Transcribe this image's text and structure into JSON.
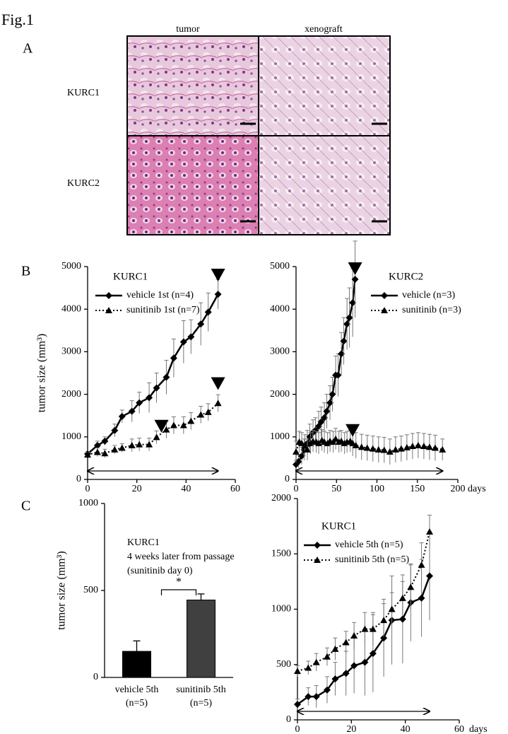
{
  "figure_label": "Fig.1",
  "panel_labels": [
    "A",
    "B",
    "C"
  ],
  "histology": {
    "columns": [
      "tumor",
      "xenograft"
    ],
    "rows": [
      "KURC1",
      "KURC2"
    ]
  },
  "chart_data": [
    {
      "type": "line",
      "label": "KURC1",
      "ylabel": "tumor size (mm³)",
      "xlim": [
        0,
        60
      ],
      "xticks": [
        0,
        20,
        40,
        60
      ],
      "ylim": [
        0,
        5000
      ],
      "yticks": [
        0,
        1000,
        2000,
        3000,
        4000,
        5000
      ],
      "legend": "upper left",
      "series": [
        {
          "name": "vehicle 1st (n=4)",
          "color": "#000000",
          "marker": "diamond",
          "dash": "solid",
          "x": [
            0,
            4,
            7,
            11,
            14,
            18,
            21,
            25,
            28,
            32,
            35,
            39,
            42,
            46,
            49,
            53
          ],
          "values": [
            600,
            800,
            900,
            1150,
            1480,
            1600,
            1800,
            1920,
            2150,
            2400,
            2850,
            3230,
            3350,
            3650,
            3930,
            4350
          ],
          "errors": [
            50,
            100,
            100,
            150,
            150,
            250,
            250,
            350,
            350,
            400,
            450,
            500,
            400,
            500,
            450,
            350
          ]
        },
        {
          "name": "sunitinib 1st (n=7)",
          "color": "#000000",
          "marker": "triangle",
          "dash": "dotted",
          "x": [
            0,
            4,
            7,
            11,
            14,
            18,
            21,
            25,
            28,
            32,
            35,
            39,
            42,
            46,
            49,
            53
          ],
          "values": [
            580,
            640,
            610,
            700,
            740,
            800,
            820,
            820,
            990,
            1170,
            1270,
            1270,
            1370,
            1520,
            1580,
            1790
          ],
          "errors": [
            50,
            100,
            100,
            100,
            100,
            150,
            150,
            150,
            150,
            200,
            200,
            200,
            200,
            200,
            200,
            200
          ]
        }
      ],
      "arrow_markers": [
        {
          "x": 53,
          "y": 4800
        },
        {
          "x": 30,
          "y": 1250
        },
        {
          "x": 53,
          "y": 2250
        }
      ],
      "treatment_span": [
        0,
        53
      ]
    },
    {
      "type": "line",
      "label": "KURC2",
      "xlabel": "days",
      "xlim": [
        0,
        200
      ],
      "xticks": [
        0,
        50,
        100,
        150,
        200
      ],
      "ylim": [
        0,
        5000
      ],
      "yticks": [
        0,
        1000,
        2000,
        3000,
        4000,
        5000
      ],
      "legend": "upper right",
      "series": [
        {
          "name": "vehicle (n=3)",
          "color": "#000000",
          "marker": "diamond",
          "dash": "solid",
          "x": [
            0,
            3,
            7,
            10,
            14,
            17,
            21,
            24,
            28,
            31,
            35,
            38,
            42,
            45,
            49,
            52,
            56,
            59,
            63,
            66,
            70,
            73
          ],
          "values": [
            350,
            420,
            550,
            700,
            850,
            1000,
            1100,
            1150,
            1250,
            1350,
            1450,
            1600,
            1800,
            2000,
            2450,
            2450,
            2950,
            3250,
            3650,
            3800,
            4150,
            4700
          ],
          "errors": [
            100,
            150,
            200,
            250,
            300,
            300,
            300,
            300,
            350,
            350,
            350,
            400,
            400,
            400,
            450,
            500,
            500,
            550,
            600,
            700,
            800,
            900
          ]
        },
        {
          "name": "sunitinib (n=3)",
          "color": "#000000",
          "marker": "triangle",
          "dash": "dotted",
          "x": [
            0,
            4,
            7,
            11,
            14,
            18,
            21,
            25,
            28,
            32,
            35,
            39,
            42,
            46,
            49,
            53,
            56,
            60,
            63,
            67,
            70,
            74,
            81,
            88,
            95,
            102,
            109,
            116,
            123,
            130,
            137,
            144,
            151,
            158,
            165,
            172,
            181
          ],
          "values": [
            650,
            880,
            850,
            800,
            700,
            850,
            900,
            880,
            850,
            920,
            880,
            850,
            900,
            880,
            950,
            880,
            900,
            850,
            880,
            900,
            850,
            800,
            760,
            740,
            720,
            700,
            690,
            650,
            700,
            720,
            750,
            780,
            800,
            780,
            760,
            740,
            700
          ],
          "errors": [
            250,
            250,
            250,
            250,
            250,
            250,
            250,
            250,
            250,
            250,
            250,
            250,
            250,
            250,
            250,
            250,
            250,
            250,
            250,
            250,
            300,
            300,
            300,
            300,
            300,
            300,
            300,
            300,
            300,
            300,
            300,
            300,
            300,
            300,
            300,
            300,
            250
          ]
        }
      ],
      "arrow_markers": [
        {
          "x": 73,
          "y": 4950
        },
        {
          "x": 70,
          "y": 1150
        }
      ],
      "treatment_span": [
        0,
        181
      ]
    },
    {
      "type": "bar",
      "ylabel": "tumor size (mm³)",
      "annotations": [
        "KURC1",
        "4 weeks later from passage",
        "(sunitinib day 0)"
      ],
      "categories": [
        "vehicle 5th",
        "sunitinib 5th"
      ],
      "category_notes": [
        "(n=5)",
        "(n=5)"
      ],
      "values": [
        150,
        445
      ],
      "errors": [
        60,
        35
      ],
      "colors": [
        "#000000",
        "#404040"
      ],
      "ylim": [
        0,
        1000
      ],
      "yticks": [
        0,
        500,
        1000
      ],
      "significance": "*"
    },
    {
      "type": "line",
      "label": "KURC1",
      "xlabel": "days",
      "xlim": [
        0,
        60
      ],
      "xticks": [
        0,
        20,
        40,
        60
      ],
      "ylim": [
        0,
        2000
      ],
      "yticks": [
        0,
        500,
        1000,
        1500,
        2000
      ],
      "legend": "upper left",
      "series": [
        {
          "name": "vehicle 5th (n=5)",
          "color": "#000000",
          "marker": "diamond",
          "dash": "solid",
          "x": [
            0,
            4,
            7,
            11,
            14,
            18,
            21,
            25,
            28,
            32,
            35,
            39,
            42,
            46,
            49
          ],
          "values": [
            140,
            210,
            210,
            270,
            370,
            420,
            490,
            520,
            600,
            740,
            900,
            910,
            1060,
            1100,
            1300
          ],
          "errors": [
            50,
            80,
            100,
            120,
            150,
            200,
            250,
            300,
            350,
            350,
            400,
            400,
            350,
            350,
            400
          ]
        },
        {
          "name": "sunitinib 5th (n=5)",
          "color": "#000000",
          "marker": "triangle",
          "dash": "dotted",
          "x": [
            0,
            4,
            7,
            11,
            14,
            18,
            21,
            25,
            28,
            32,
            35,
            39,
            42,
            46,
            49
          ],
          "values": [
            440,
            470,
            520,
            570,
            640,
            700,
            760,
            820,
            820,
            900,
            1000,
            1100,
            1200,
            1400,
            1700
          ],
          "errors": [
            50,
            60,
            80,
            80,
            100,
            100,
            120,
            150,
            150,
            150,
            150,
            150,
            200,
            200,
            150
          ]
        }
      ],
      "treatment_span": [
        0,
        49
      ]
    }
  ]
}
